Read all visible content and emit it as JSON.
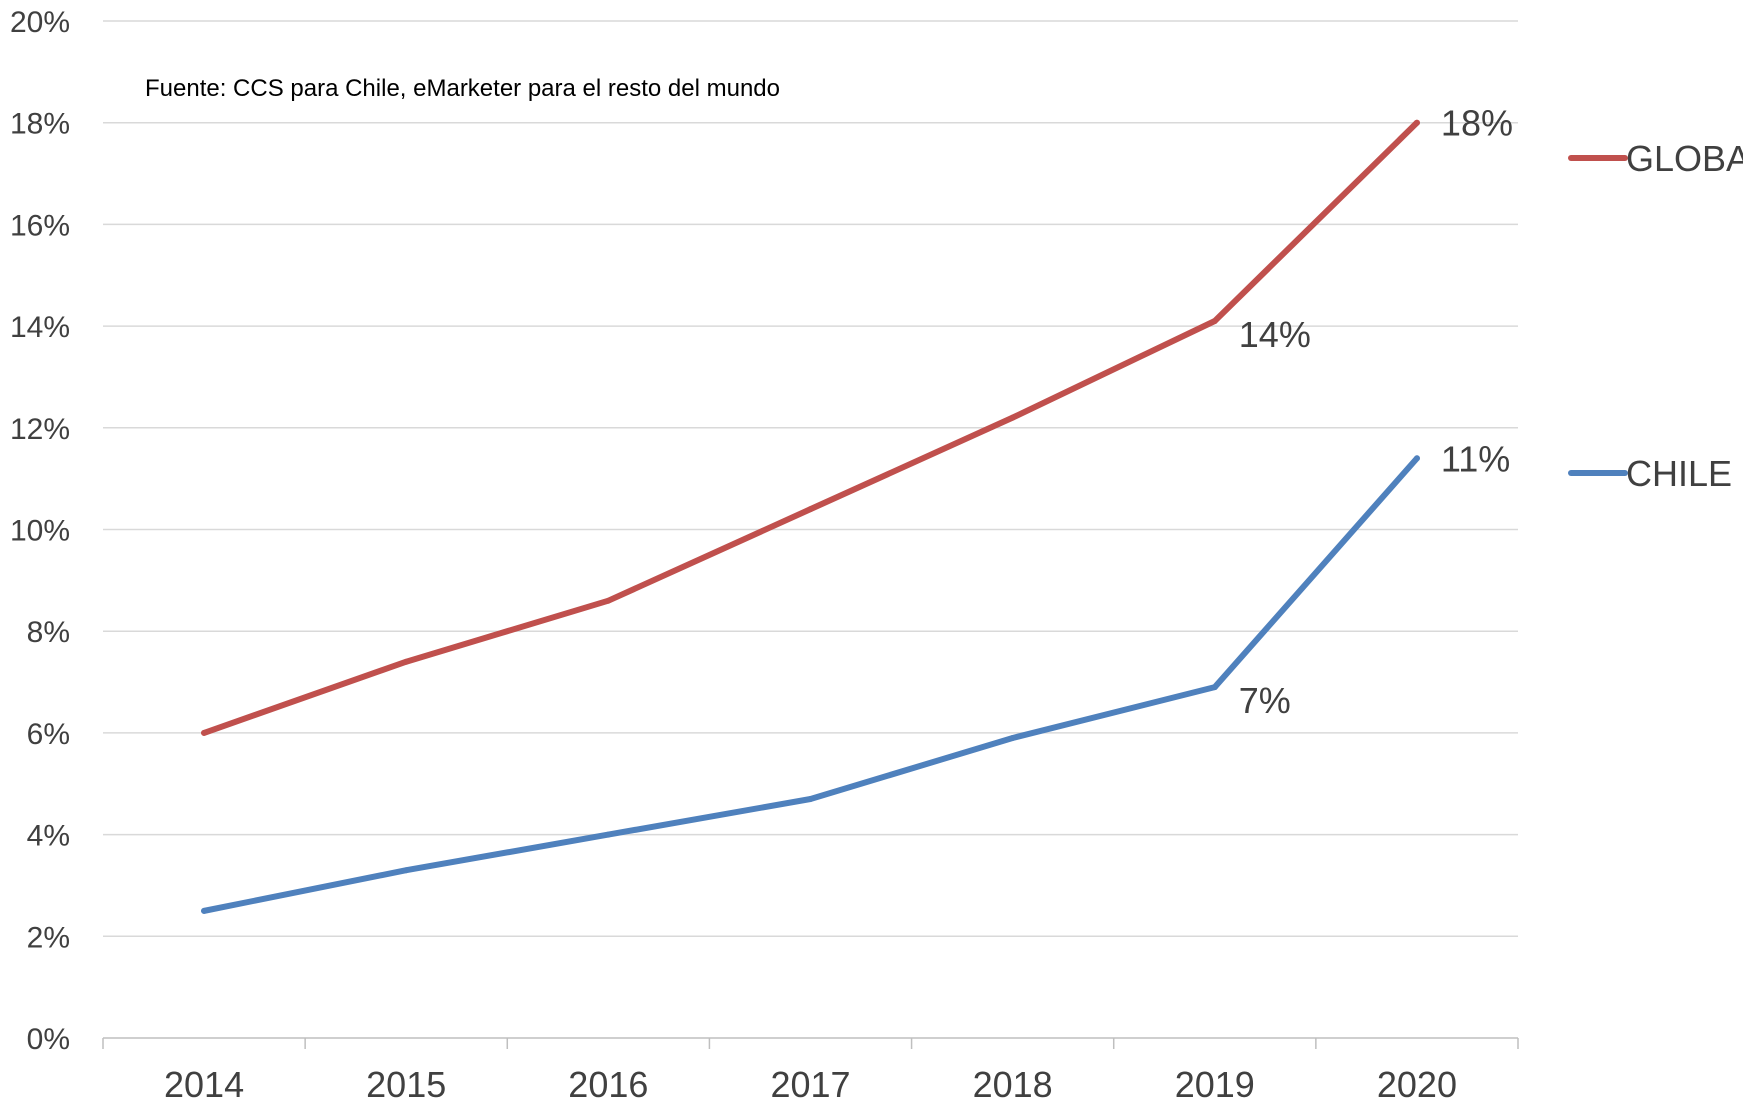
{
  "chart_data": {
    "type": "line",
    "title": "",
    "subtitle": "",
    "xlabel": "",
    "ylabel": "",
    "annotation": "Fuente: CCS para Chile, eMarketer para el resto del mundo",
    "categories": [
      "2014",
      "2015",
      "2016",
      "2017",
      "2018",
      "2019",
      "2020"
    ],
    "y_ticks": [
      "0%",
      "2%",
      "4%",
      "6%",
      "8%",
      "10%",
      "12%",
      "14%",
      "16%",
      "18%",
      "20%"
    ],
    "ylim": [
      0,
      20
    ],
    "grid": true,
    "legend_position": "right",
    "series": [
      {
        "name": "GLOBAL",
        "color": "#C0504D",
        "values": [
          6.0,
          7.4,
          8.6,
          10.4,
          12.2,
          14.1,
          18.0
        ],
        "data_labels": [
          "",
          "",
          "",
          "",
          "",
          "14%",
          "18%"
        ]
      },
      {
        "name": "CHILE",
        "color": "#4F81BD",
        "values": [
          2.5,
          3.3,
          4.0,
          4.7,
          5.9,
          6.9,
          11.4
        ],
        "data_labels": [
          "",
          "",
          "",
          "",
          "",
          "7%",
          "11%"
        ]
      }
    ]
  },
  "colors": {
    "gridline": "#D9D9D9",
    "axis": "#BFBFBF",
    "text": "#404040"
  }
}
